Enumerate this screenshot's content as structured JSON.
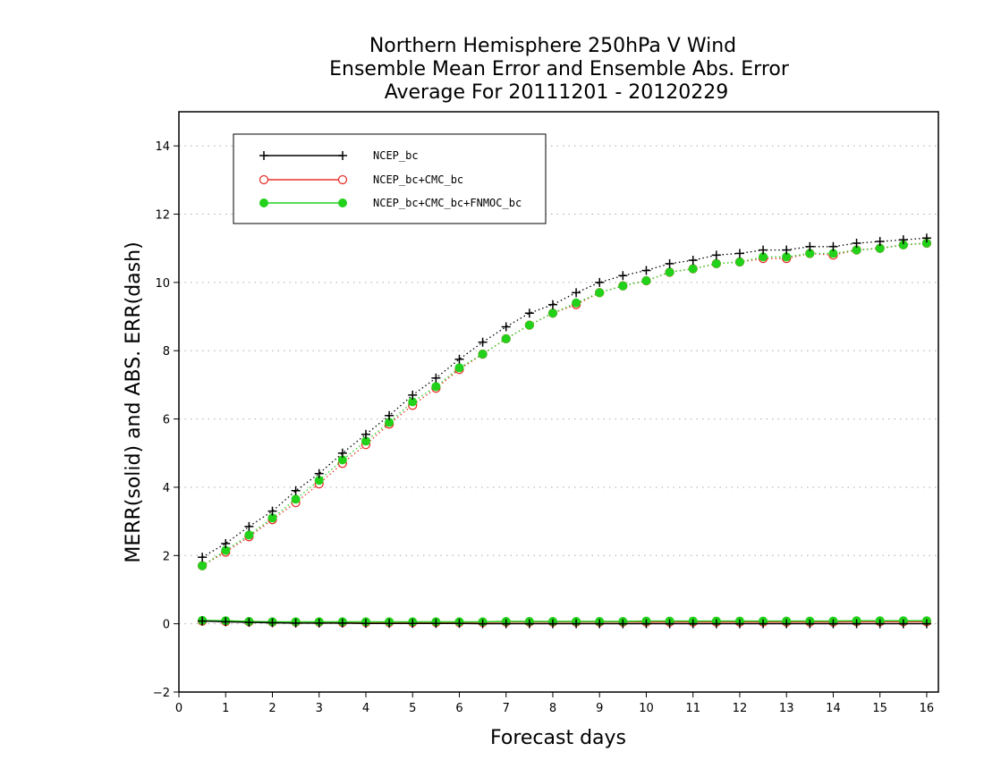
{
  "colors": {
    "ncep": "#000000",
    "ncep_cmc": "#e8302a",
    "ncep_cmc_fnmoc": "#22d11a",
    "grid": "#aaaaaa"
  },
  "chart_data": {
    "type": "line",
    "title": [
      "Northern Hemisphere 250hPa V Wind",
      "Ensemble Mean Error and Ensemble Abs. Error",
      "Average For 20111201 - 20120229"
    ],
    "xlabel": "Forecast days",
    "ylabel": "MERR(solid) and ABS. ERR(dash)",
    "xlim": [
      0,
      16.25
    ],
    "ylim": [
      -2,
      15
    ],
    "xticks": [
      "0",
      "1",
      "2",
      "3",
      "4",
      "5",
      "6",
      "7",
      "8",
      "9",
      "10",
      "11",
      "12",
      "13",
      "14",
      "15",
      "16"
    ],
    "yticks": [
      "-2",
      "0",
      "2",
      "4",
      "6",
      "8",
      "10",
      "12",
      "14"
    ],
    "grid": "horizontal dotted",
    "legend_position": "top-left",
    "x": [
      0.5,
      1,
      1.5,
      2,
      2.5,
      3,
      3.5,
      4,
      4.5,
      5,
      5.5,
      6,
      6.5,
      7,
      7.5,
      8,
      8.5,
      9,
      9.5,
      10,
      10.5,
      11,
      11.5,
      12,
      12.5,
      13,
      13.5,
      14,
      14.5,
      15,
      15.5,
      16
    ],
    "series": [
      {
        "name": "NCEP_bc",
        "marker": "plus",
        "color_key": "ncep",
        "abs_err": [
          1.95,
          2.35,
          2.85,
          3.3,
          3.9,
          4.4,
          5.0,
          5.55,
          6.1,
          6.7,
          7.2,
          7.75,
          8.25,
          8.7,
          9.1,
          9.35,
          9.7,
          10.0,
          10.2,
          10.35,
          10.55,
          10.65,
          10.8,
          10.85,
          10.95,
          10.95,
          11.05,
          11.05,
          11.15,
          11.2,
          11.25,
          11.3
        ],
        "mean_err": [
          0.08,
          0.06,
          0.04,
          0.03,
          0.02,
          0.02,
          0.02,
          0.01,
          0.01,
          0.01,
          0.01,
          0.01,
          0.0,
          0.0,
          0.0,
          0.0,
          0.0,
          0.0,
          0.0,
          0.0,
          0.0,
          0.0,
          0.0,
          0.0,
          0.0,
          0.0,
          0.0,
          0.0,
          0.0,
          0.0,
          0.0,
          0.0
        ]
      },
      {
        "name": "NCEP_bc+CMC_bc",
        "marker": "open-circle",
        "color_key": "ncep_cmc",
        "abs_err": [
          1.7,
          2.1,
          2.55,
          3.05,
          3.55,
          4.1,
          4.7,
          5.25,
          5.85,
          6.4,
          6.9,
          7.45,
          7.9,
          8.35,
          8.75,
          9.1,
          9.35,
          9.7,
          9.9,
          10.05,
          10.3,
          10.4,
          10.55,
          10.6,
          10.7,
          10.7,
          10.85,
          10.8,
          10.95,
          11.0,
          11.1,
          11.15
        ],
        "mean_err": [
          0.08,
          0.07,
          0.06,
          0.05,
          0.05,
          0.05,
          0.04,
          0.04,
          0.04,
          0.04,
          0.04,
          0.04,
          0.04,
          0.05,
          0.05,
          0.05,
          0.05,
          0.05,
          0.05,
          0.05,
          0.05,
          0.05,
          0.05,
          0.05,
          0.05,
          0.05,
          0.05,
          0.05,
          0.06,
          0.06,
          0.06,
          0.06
        ]
      },
      {
        "name": "NCEP_bc+CMC_bc+FNMOC_bc",
        "marker": "filled-circle",
        "color_key": "ncep_cmc_fnmoc",
        "abs_err": [
          1.7,
          2.15,
          2.6,
          3.1,
          3.65,
          4.2,
          4.8,
          5.35,
          5.9,
          6.5,
          6.95,
          7.5,
          7.9,
          8.35,
          8.75,
          9.1,
          9.4,
          9.7,
          9.9,
          10.05,
          10.3,
          10.4,
          10.55,
          10.6,
          10.75,
          10.75,
          10.85,
          10.85,
          10.95,
          11.0,
          11.1,
          11.15
        ],
        "mean_err": [
          0.1,
          0.09,
          0.07,
          0.06,
          0.06,
          0.06,
          0.06,
          0.06,
          0.06,
          0.06,
          0.06,
          0.06,
          0.06,
          0.07,
          0.07,
          0.07,
          0.07,
          0.07,
          0.07,
          0.08,
          0.08,
          0.08,
          0.08,
          0.08,
          0.08,
          0.08,
          0.08,
          0.08,
          0.09,
          0.09,
          0.09,
          0.09
        ]
      }
    ]
  }
}
